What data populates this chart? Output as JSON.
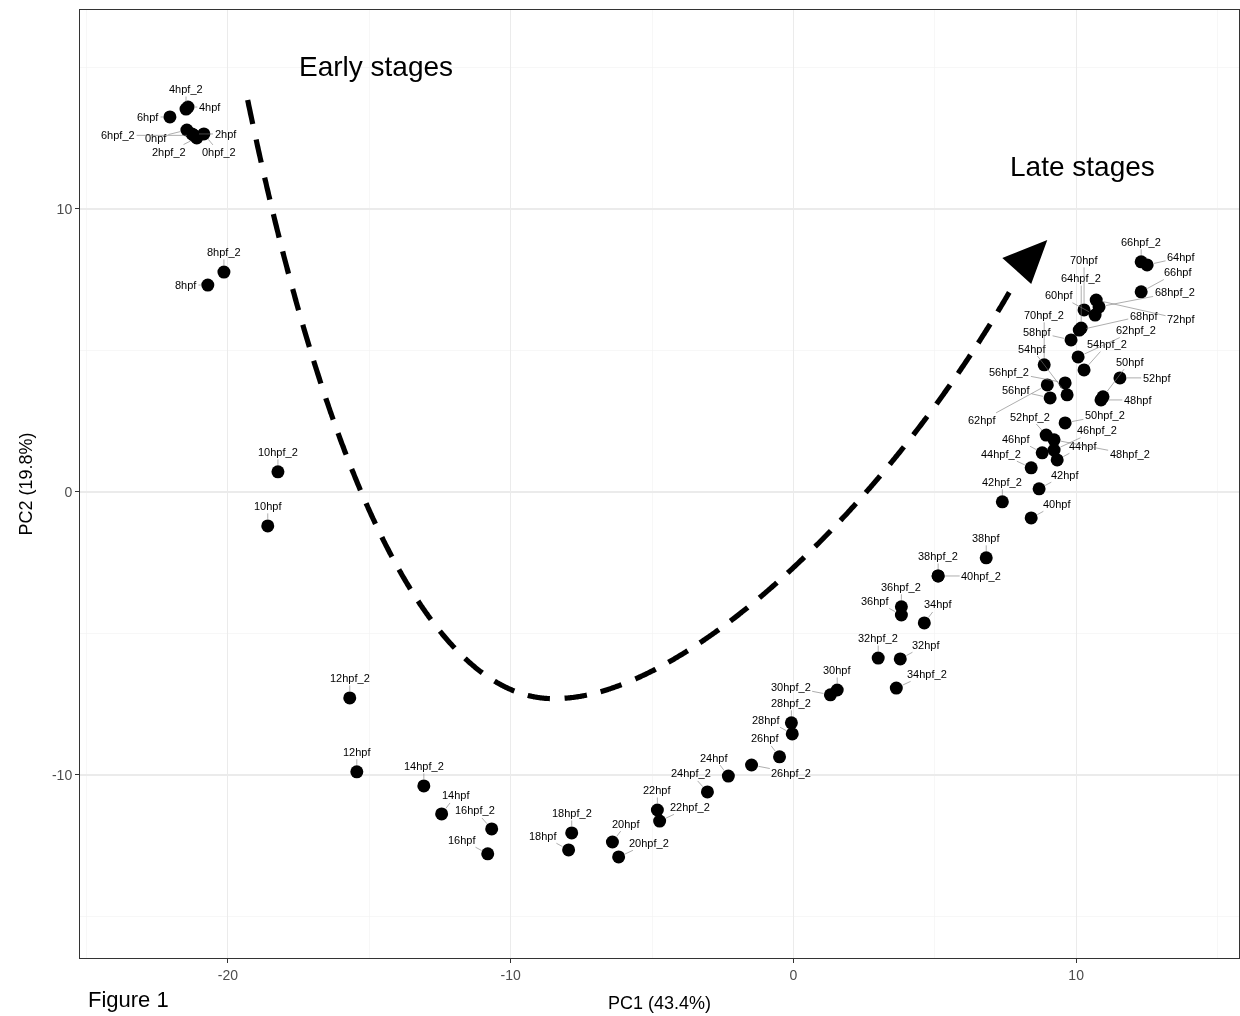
{
  "chart_data": {
    "type": "scatter",
    "xlabel": "PC1 (43.4%)",
    "ylabel": "PC2 (19.8%)",
    "x": [
      -21.41,
      -21.48,
      -22.05,
      -21.45,
      -21.27,
      -21.1,
      -20.85,
      -21.2,
      -20.14,
      -20.71,
      -18.23,
      -18.59,
      -15.69,
      -15.44,
      -13.07,
      -12.44,
      -10.67,
      -10.81,
      -7.84,
      -7.95,
      -6.4,
      -6.18,
      -4.81,
      -4.73,
      -3.04,
      -2.3,
      -1.48,
      -0.49,
      -0.07,
      -0.04,
      1.55,
      1.31,
      3.0,
      3.78,
      3.64,
      4.63,
      3.82,
      3.82,
      6.82,
      5.12,
      5.12,
      8.41,
      7.39,
      8.69,
      8.41,
      9.33,
      8.8,
      9.22,
      8.94,
      9.22,
      9.61,
      10.88,
      10.95,
      11.55,
      9.08,
      9.61,
      9.68,
      8.98,
      8.87,
      10.28,
      10.07,
      9.82,
      10.11,
      10.18,
      10.67,
      10.81,
      10.28,
      10.71,
      12.3,
      12.3,
      12.51
    ],
    "values": [
      13.6,
      13.53,
      13.25,
      12.79,
      12.65,
      12.51,
      12.65,
      12.6,
      7.77,
      7.31,
      0.71,
      -1.2,
      -7.28,
      -9.89,
      -10.39,
      -11.38,
      -11.91,
      -12.79,
      -12.05,
      -12.65,
      -12.37,
      -12.9,
      -11.24,
      -11.63,
      -10.6,
      -10.04,
      -9.65,
      -9.36,
      -8.16,
      -8.55,
      -7.0,
      -7.17,
      -5.87,
      -5.9,
      -6.93,
      -4.63,
      -4.06,
      -4.35,
      -2.33,
      -2.97,
      -2.97,
      -0.92,
      -0.35,
      0.11,
      0.85,
      1.13,
      1.38,
      1.48,
      2.01,
      1.84,
      2.44,
      3.25,
      3.36,
      4.03,
      3.32,
      3.85,
      3.43,
      3.78,
      4.49,
      4.31,
      4.77,
      5.37,
      5.72,
      5.79,
      6.25,
      6.54,
      6.43,
      6.78,
      7.07,
      8.13,
      8.02
    ],
    "color": "#000000",
    "marker": "circle",
    "xlim": [
      -25.23,
      15.76
    ],
    "xticks": [
      -20,
      -10,
      0,
      10
    ],
    "ylim": [
      -16.47,
      17.03
    ],
    "yticks": [
      -10,
      0,
      10
    ],
    "grid": true,
    "annotations": [
      "Early stages",
      "Late stages",
      "Figure 1",
      {
        "text": "4hpf",
        "x": -21.41,
        "y": 13.6
      },
      {
        "text": "4hpf_2",
        "x": -21.48,
        "y": 13.53
      },
      {
        "text": "6hpf",
        "x": -22.05,
        "y": 13.25
      },
      {
        "text": "0hpf",
        "x": -21.45,
        "y": 12.79
      },
      {
        "text": "2hpf",
        "x": -21.27,
        "y": 12.65
      },
      {
        "text": "2hpf_2",
        "x": -21.1,
        "y": 12.51
      },
      {
        "text": "0hpf_2",
        "x": -20.85,
        "y": 12.65
      },
      {
        "text": "6hpf_2",
        "x": -21.2,
        "y": 12.6
      },
      {
        "text": "8hpf_2",
        "x": -20.14,
        "y": 7.77
      },
      {
        "text": "8hpf",
        "x": -20.71,
        "y": 7.31
      },
      {
        "text": "10hpf_2",
        "x": -18.23,
        "y": 0.71
      },
      {
        "text": "10hpf",
        "x": -18.59,
        "y": -1.2
      },
      {
        "text": "12hpf_2",
        "x": -15.69,
        "y": -7.28
      },
      {
        "text": "12hpf",
        "x": -15.44,
        "y": -9.89
      },
      {
        "text": "14hpf_2",
        "x": -13.07,
        "y": -10.39
      },
      {
        "text": "14hpf",
        "x": -12.44,
        "y": -11.38
      },
      {
        "text": "16hpf_2",
        "x": -10.67,
        "y": -11.91
      },
      {
        "text": "16hpf",
        "x": -10.81,
        "y": -12.79
      },
      {
        "text": "18hpf_2",
        "x": -7.84,
        "y": -12.05
      },
      {
        "text": "18hpf",
        "x": -7.95,
        "y": -12.65
      },
      {
        "text": "20hpf",
        "x": -6.4,
        "y": -12.37
      },
      {
        "text": "20hpf_2",
        "x": -6.18,
        "y": -12.9
      },
      {
        "text": "22hpf",
        "x": -4.81,
        "y": -11.24
      },
      {
        "text": "22hpf_2",
        "x": -4.73,
        "y": -11.63
      },
      {
        "text": "24hpf_2",
        "x": -3.04,
        "y": -10.6
      },
      {
        "text": "24hpf",
        "x": -2.3,
        "y": -10.04
      },
      {
        "text": "26hpf_2",
        "x": -1.48,
        "y": -9.65
      },
      {
        "text": "26hpf",
        "x": -0.49,
        "y": -9.36
      },
      {
        "text": "28hpf_2",
        "x": -0.07,
        "y": -8.16
      },
      {
        "text": "28hpf",
        "x": -0.04,
        "y": -8.55
      },
      {
        "text": "30hpf",
        "x": 1.55,
        "y": -7.0
      },
      {
        "text": "30hpf_2",
        "x": 1.31,
        "y": -7.17
      },
      {
        "text": "32hpf_2",
        "x": 3.0,
        "y": -5.87
      },
      {
        "text": "32hpf",
        "x": 3.78,
        "y": -5.9
      },
      {
        "text": "34hpf_2",
        "x": 3.64,
        "y": -6.93
      },
      {
        "text": "34hpf",
        "x": 4.63,
        "y": -4.63
      },
      {
        "text": "36hpf_2",
        "x": 3.82,
        "y": -4.06
      },
      {
        "text": "36hpf",
        "x": 3.82,
        "y": -4.35
      },
      {
        "text": "38hpf",
        "x": 6.82,
        "y": -2.33
      },
      {
        "text": "38hpf_2",
        "x": 5.12,
        "y": -2.97
      },
      {
        "text": "40hpf_2",
        "x": 5.12,
        "y": -2.97
      },
      {
        "text": "40hpf",
        "x": 8.41,
        "y": -0.92
      },
      {
        "text": "42hpf_2",
        "x": 7.39,
        "y": -0.35
      },
      {
        "text": "42hpf",
        "x": 8.69,
        "y": 0.11
      },
      {
        "text": "44hpf_2",
        "x": 8.41,
        "y": 0.85
      },
      {
        "text": "44hpf",
        "x": 9.33,
        "y": 1.13
      },
      {
        "text": "46hpf",
        "x": 8.8,
        "y": 1.38
      },
      {
        "text": "46hpf_2",
        "x": 9.22,
        "y": 1.48
      },
      {
        "text": "52hpf_2",
        "x": 8.94,
        "y": 2.01
      },
      {
        "text": "48hpf_2",
        "x": 9.22,
        "y": 1.84
      },
      {
        "text": "50hpf_2",
        "x": 9.61,
        "y": 2.44
      },
      {
        "text": "48hpf",
        "x": 10.88,
        "y": 3.25
      },
      {
        "text": "50hpf",
        "x": 10.95,
        "y": 3.36
      },
      {
        "text": "52hpf",
        "x": 11.55,
        "y": 4.03
      },
      {
        "text": "56hpf",
        "x": 9.08,
        "y": 3.32
      },
      {
        "text": "56hpf_2",
        "x": 9.61,
        "y": 3.85
      },
      {
        "text": "54hpf",
        "x": 9.68,
        "y": 3.43
      },
      {
        "text": "62hpf",
        "x": 8.98,
        "y": 3.78
      },
      {
        "text": "70hpf_2",
        "x": 8.87,
        "y": 4.49
      },
      {
        "text": "54hpf_2",
        "x": 10.28,
        "y": 4.31
      },
      {
        "text": "62hpf_2",
        "x": 10.07,
        "y": 4.77
      },
      {
        "text": "58hpf",
        "x": 9.82,
        "y": 5.37
      },
      {
        "text": "68hpf",
        "x": 10.11,
        "y": 5.72
      },
      {
        "text": "64hpf_2",
        "x": 10.18,
        "y": 5.79
      },
      {
        "text": "60hpf",
        "x": 10.67,
        "y": 6.25
      },
      {
        "text": "68hpf_2",
        "x": 10.81,
        "y": 6.54
      },
      {
        "text": "70hpf",
        "x": 10.28,
        "y": 6.43
      },
      {
        "text": "72hpf",
        "x": 10.71,
        "y": 6.78
      },
      {
        "text": "66hpf",
        "x": 12.3,
        "y": 7.07
      },
      {
        "text": "66hpf_2",
        "x": 12.3,
        "y": 8.13
      },
      {
        "text": "64hpf",
        "x": 12.51,
        "y": 8.02
      }
    ]
  }
}
